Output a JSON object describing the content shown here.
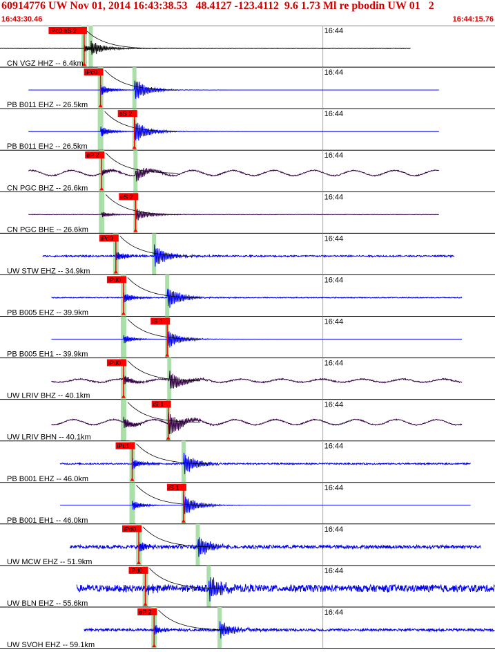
{
  "header": {
    "title": "60914776 UW Nov 01, 2014 16:43:38.53   48.4127 -123.4112  9.6 1.73 Ml re pbodin UW 01   2",
    "start_time": "16:43:30.46",
    "end_time": "16:44:15.76"
  },
  "chart_data": {
    "type": "waveform",
    "time_range": [
      "16:43:30.46",
      "16:44:15.76"
    ],
    "minute_tick_label": "16:44",
    "colors": {
      "black": "#000000",
      "blue": "#0000ee",
      "purple": "#330044",
      "pick": "#ff0000",
      "green_band": "#aadfaa"
    },
    "traces": [
      {
        "label": "CN VGZ HHZ -- 6.4km",
        "pick": "iPc0 eS 2",
        "color": "black",
        "p_sec": 7.7,
        "s_sec": 8.3,
        "start_sec": 0.0,
        "end_sec": 37.6,
        "amp": 0.35,
        "noise": 0.02
      },
      {
        "label": "PB B011 EHZ -- 26.5km",
        "pick": "iPc0",
        "color": "blue",
        "p_sec": 9.2,
        "s_sec": 12.3,
        "start_sec": 2.6,
        "end_sec": 40.2,
        "amp": 0.55,
        "noise": 0.0
      },
      {
        "label": "PB B011 EH2 -- 26.5km",
        "pick": "eS 2",
        "color": "blue",
        "p_sec": 9.2,
        "s_sec": 12.3,
        "start_sec": 2.6,
        "end_sec": 40.2,
        "amp": 0.55,
        "noise": 0.0
      },
      {
        "label": "CN PGC BHZ -- 26.6km",
        "pick": "eP 2",
        "color": "purple",
        "p_sec": 9.3,
        "s_sec": 12.4,
        "start_sec": 2.6,
        "end_sec": 40.2,
        "amp": 0.35,
        "noise": 0.05,
        "swell": 0.25
      },
      {
        "label": "CN PGC BHE -- 26.6km",
        "pick": "eS 2",
        "color": "purple",
        "p_sec": 9.3,
        "s_sec": 12.4,
        "start_sec": 2.6,
        "end_sec": 40.2,
        "amp": 0.3,
        "noise": 0.02
      },
      {
        "label": "UW STW EHZ -- 34.9km",
        "pick": "iPd0",
        "color": "blue",
        "p_sec": 10.6,
        "s_sec": 14.1,
        "start_sec": 3.9,
        "end_sec": 41.6,
        "amp": 0.55,
        "noise": 0.08
      },
      {
        "label": "PB B005 EHZ -- 39.9km",
        "pick": "iPd0",
        "color": "blue",
        "p_sec": 11.3,
        "s_sec": 15.3,
        "start_sec": 4.7,
        "end_sec": 42.3,
        "amp": 0.55,
        "noise": 0.04
      },
      {
        "label": "PB B005 EH1 -- 39.9km",
        "pick": "iS 1",
        "color": "blue",
        "p_sec": 11.3,
        "s_sec": 15.3,
        "start_sec": 4.7,
        "end_sec": 42.3,
        "amp": 0.45,
        "noise": 0.0
      },
      {
        "label": "UW LRIV BHZ -- 40.1km",
        "pick": "iPd0",
        "color": "purple",
        "p_sec": 11.3,
        "s_sec": 15.5,
        "start_sec": 4.7,
        "end_sec": 42.3,
        "amp": 0.5,
        "noise": 0.06,
        "swell": 0.15
      },
      {
        "label": "UW LRIV BHN -- 40.1km",
        "pick": "iS 1",
        "color": "purple",
        "p_sec": 11.3,
        "s_sec": 15.4,
        "start_sec": 4.7,
        "end_sec": 42.3,
        "amp": 0.6,
        "noise": 0.05,
        "swell": 0.25
      },
      {
        "label": "PB B001 EHZ -- 46.0km",
        "pick": "iPd1",
        "color": "blue",
        "p_sec": 12.1,
        "s_sec": 16.8,
        "start_sec": 5.5,
        "end_sec": 43.1,
        "amp": 0.55,
        "noise": 0.07
      },
      {
        "label": "PB B001 EH1 -- 46.0km",
        "pick": "iS 1",
        "color": "blue",
        "p_sec": 12.1,
        "s_sec": 16.8,
        "start_sec": 5.5,
        "end_sec": 43.1,
        "amp": 0.5,
        "noise": 0.0
      },
      {
        "label": "UW MCW EHZ -- 51.9km",
        "pick": "iPd0",
        "color": "blue",
        "p_sec": 12.7,
        "s_sec": 18.1,
        "start_sec": 6.4,
        "end_sec": 44.0,
        "amp": 0.55,
        "noise": 0.16
      },
      {
        "label": "UW BLN EHZ -- 55.6km",
        "pick": "iPd0",
        "color": "blue",
        "p_sec": 13.3,
        "s_sec": 19.1,
        "start_sec": 7.0,
        "end_sec": 45.3,
        "amp": 0.55,
        "noise": 0.34
      },
      {
        "label": "UW SVOH EHZ -- 59.1km",
        "pick": "eP 2",
        "color": "blue",
        "p_sec": 14.1,
        "s_sec": 20.1,
        "start_sec": 7.7,
        "end_sec": 45.3,
        "amp": 0.45,
        "noise": 0.12
      }
    ]
  }
}
